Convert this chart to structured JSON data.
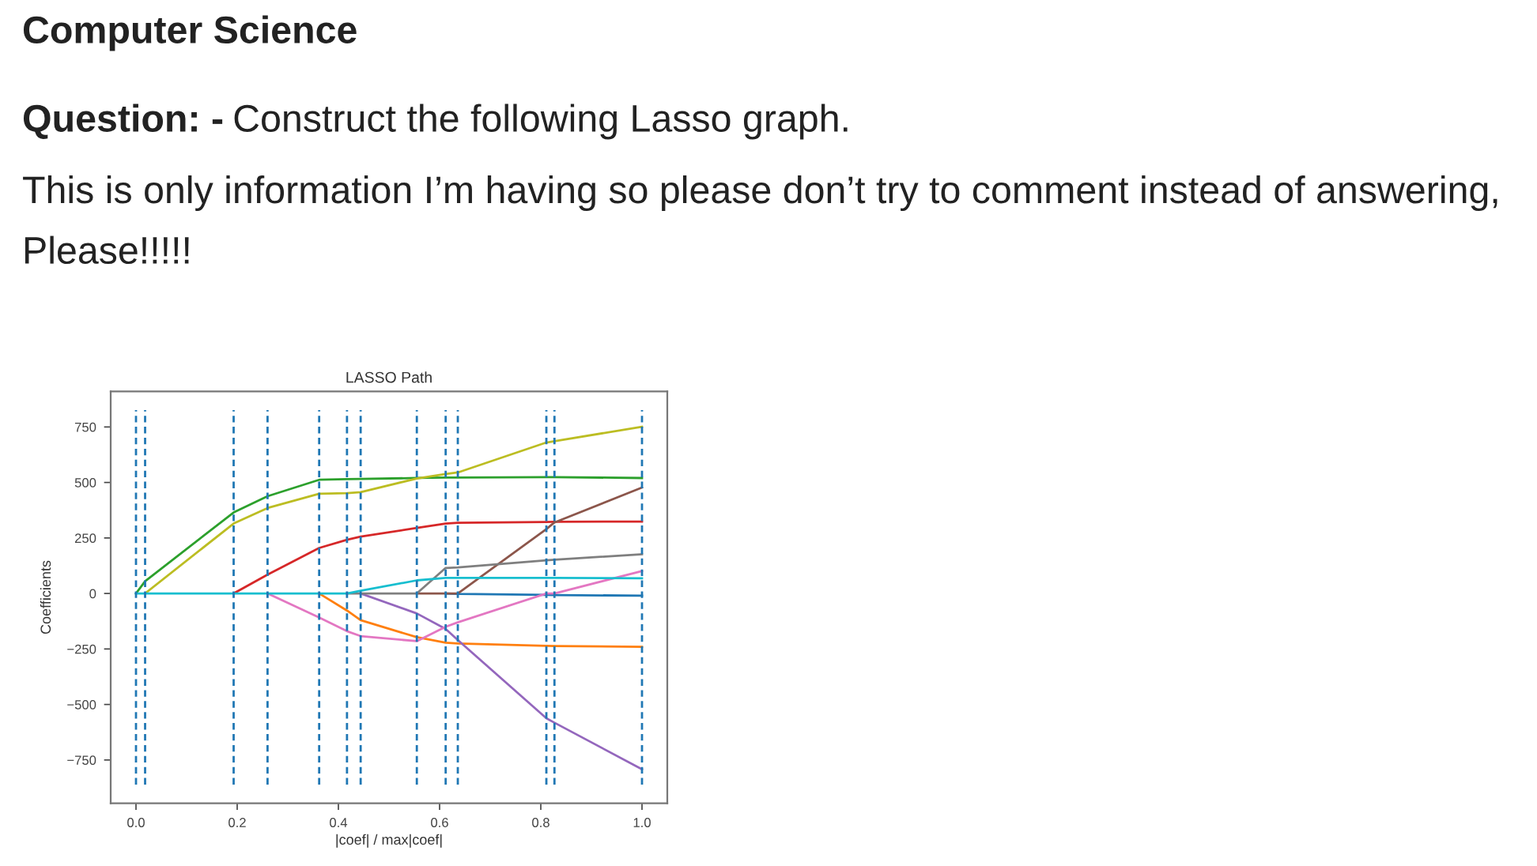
{
  "chart_data": {
    "type": "line",
    "title": "LASSO Path",
    "xlabel": "|coef| / max|coef|",
    "ylabel": "Coefficients",
    "annotations": [
      "Computer Science",
      "Question: -",
      "Construct the following Lasso graph.",
      "This is only information I’m having so please don’t try to comment instead of answering, Please!!!!!"
    ],
    "x": [
      0,
      0.018,
      0.193,
      0.26,
      0.362,
      0.417,
      0.444,
      0.555,
      0.612,
      0.636,
      0.811,
      0.827,
      1.0
    ],
    "series": [
      {
        "color": "#1f77b4",
        "values": [
          null,
          null,
          null,
          null,
          null,
          null,
          null,
          null,
          0,
          -2,
          -6,
          -7,
          -10
        ]
      },
      {
        "color": "#ff7f0e",
        "values": [
          null,
          null,
          null,
          null,
          0,
          -77,
          -120,
          -197,
          -222,
          -225,
          -236,
          -237,
          -240
        ]
      },
      {
        "color": "#2ca02c",
        "values": [
          0,
          55,
          365,
          438,
          512,
          515,
          516,
          520,
          522,
          522,
          524,
          524,
          520
        ]
      },
      {
        "color": "#d62728",
        "values": [
          null,
          null,
          0,
          85,
          205,
          242,
          256,
          295,
          315,
          318,
          322,
          323,
          324
        ]
      },
      {
        "color": "#9467bd",
        "values": [
          null,
          null,
          null,
          null,
          null,
          null,
          0,
          -90,
          -160,
          -210,
          -562,
          -582,
          -792
        ]
      },
      {
        "color": "#8c564b",
        "values": [
          null,
          null,
          null,
          null,
          null,
          null,
          null,
          0,
          0,
          0,
          290,
          320,
          477
        ]
      },
      {
        "color": "#e377c2",
        "values": [
          null,
          null,
          null,
          0,
          -108,
          -170,
          -192,
          -215,
          -150,
          -130,
          0,
          0,
          101
        ]
      },
      {
        "color": "#7f7f7f",
        "values": [
          null,
          null,
          null,
          null,
          null,
          0,
          0,
          0,
          115,
          117,
          149,
          152,
          177
        ]
      },
      {
        "color": "#bcbd22",
        "values": [
          null,
          0,
          315,
          385,
          449,
          452,
          456,
          518,
          538,
          545,
          680,
          686,
          751
        ]
      },
      {
        "color": "#17becf",
        "values": [
          0,
          0,
          0,
          0,
          0,
          0,
          12,
          59,
          70,
          70,
          70,
          70,
          68
        ]
      }
    ],
    "xlim": [
      -0.05,
      1.05
    ],
    "ylim": [
      -945,
      910
    ],
    "xticks": [
      {
        "value": 0,
        "label": "0.0"
      },
      {
        "value": 0.2,
        "label": "0.2"
      },
      {
        "value": 0.4,
        "label": "0.4"
      },
      {
        "value": 0.6,
        "label": "0.6"
      },
      {
        "value": 0.8,
        "label": "0.8"
      },
      {
        "value": 1.0,
        "label": "1.0"
      }
    ],
    "yticks": [
      {
        "value": -750,
        "label": "−750"
      },
      {
        "value": -500,
        "label": "−500"
      },
      {
        "value": -250,
        "label": "−250"
      },
      0,
      250,
      500,
      750
    ],
    "ref_lines": [
      {
        "axis": "x",
        "value": 0,
        "color": "#1f77b4",
        "line_style": "dashed"
      },
      {
        "axis": "x",
        "value": 0.018,
        "color": "#1f77b4",
        "line_style": "dashed"
      },
      {
        "axis": "x",
        "value": 0.193,
        "color": "#1f77b4",
        "line_style": "dashed"
      },
      {
        "axis": "x",
        "value": 0.26,
        "color": "#1f77b4",
        "line_style": "dashed"
      },
      {
        "axis": "x",
        "value": 0.362,
        "color": "#1f77b4",
        "line_style": "dashed"
      },
      {
        "axis": "x",
        "value": 0.417,
        "color": "#1f77b4",
        "line_style": "dashed"
      },
      {
        "axis": "x",
        "value": 0.444,
        "color": "#1f77b4",
        "line_style": "dashed"
      },
      {
        "axis": "x",
        "value": 0.555,
        "color": "#1f77b4",
        "line_style": "dashed"
      },
      {
        "axis": "x",
        "value": 0.612,
        "color": "#1f77b4",
        "line_style": "dashed"
      },
      {
        "axis": "x",
        "value": 0.636,
        "color": "#1f77b4",
        "line_style": "dashed"
      },
      {
        "axis": "x",
        "value": 0.811,
        "color": "#1f77b4",
        "line_style": "dashed"
      },
      {
        "axis": "x",
        "value": 0.827,
        "color": "#1f77b4",
        "line_style": "dashed"
      },
      {
        "axis": "x",
        "value": 1.0,
        "color": "#1f77b4",
        "line_style": "dashed"
      }
    ]
  }
}
